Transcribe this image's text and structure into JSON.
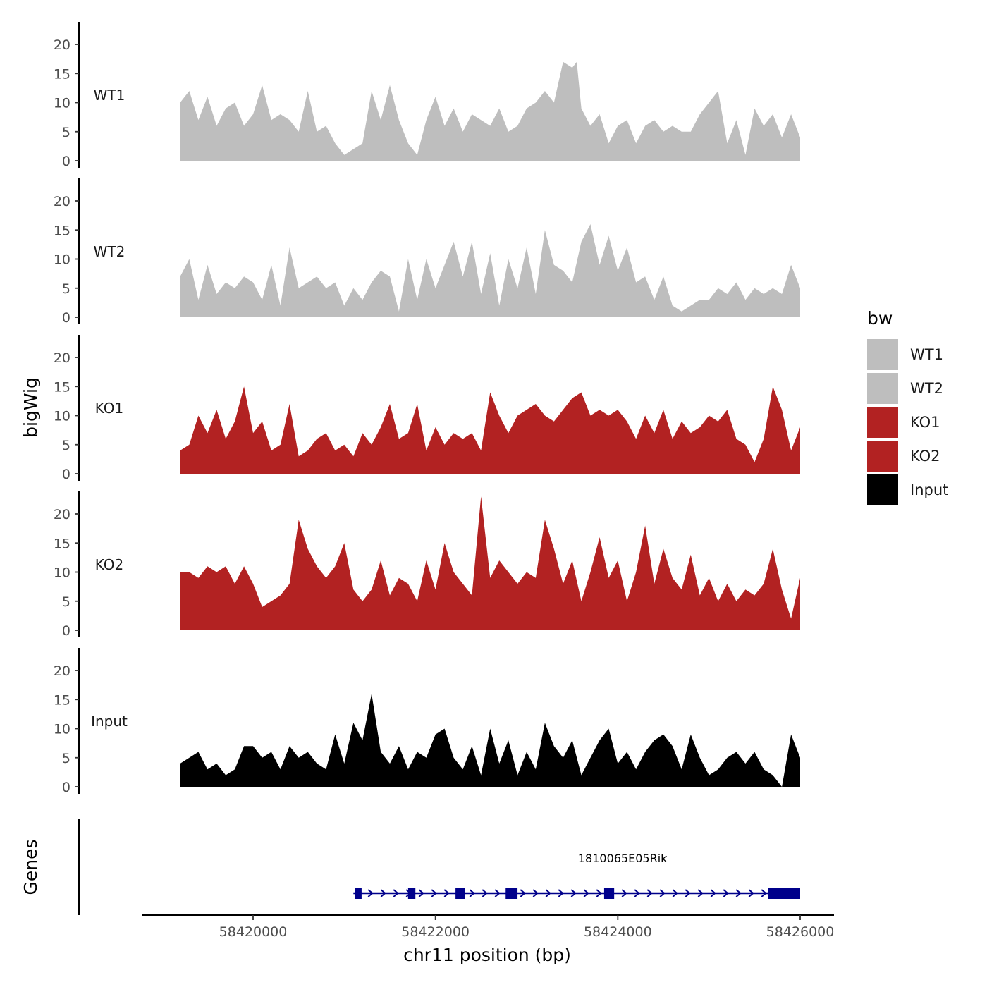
{
  "chart_data": {
    "type": "area",
    "title": "",
    "ylabel": "bigWig",
    "genes_label": "Genes",
    "xlabel": "chr11 position (bp)",
    "ylim": [
      0,
      23
    ],
    "yticks": [
      "0",
      "5",
      "10",
      "15",
      "20"
    ],
    "xlim": [
      58418800,
      58426300
    ],
    "xticks": [
      {
        "value": 58420000,
        "label": "58420000"
      },
      {
        "value": 58422000,
        "label": "58422000"
      },
      {
        "value": 58424000,
        "label": "58424000"
      },
      {
        "value": 58426000,
        "label": "58426000"
      }
    ],
    "legend": {
      "title": "bw",
      "position": "right",
      "entries": [
        {
          "label": "WT1",
          "color": "#BEBEBE"
        },
        {
          "label": "WT2",
          "color": "#BEBEBE"
        },
        {
          "label": "KO1",
          "color": "#B22222"
        },
        {
          "label": "KO2",
          "color": "#B22222"
        },
        {
          "label": "Input",
          "color": "#000000"
        }
      ]
    },
    "tracks": [
      {
        "name": "WT1",
        "color": "#BEBEBE",
        "x": [
          58419200,
          58419300,
          58419400,
          58419500,
          58419600,
          58419700,
          58419800,
          58419900,
          58420000,
          58420100,
          58420200,
          58420300,
          58420400,
          58420500,
          58420600,
          58420700,
          58420800,
          58420900,
          58421000,
          58421100,
          58421200,
          58421300,
          58421400,
          58421500,
          58421600,
          58421700,
          58421800,
          58421900,
          58422000,
          58422100,
          58422200,
          58422300,
          58422400,
          58422500,
          58422600,
          58422700,
          58422800,
          58422900,
          58423000,
          58423100,
          58423200,
          58423300,
          58423400,
          58423500,
          58423550,
          58423600,
          58423700,
          58423800,
          58423900,
          58424000,
          58424100,
          58424200,
          58424300,
          58424400,
          58424500,
          58424600,
          58424700,
          58424800,
          58424900,
          58425000,
          58425100,
          58425200,
          58425300,
          58425400,
          58425500,
          58425600,
          58425700,
          58425800,
          58425900,
          58426000
        ],
        "values": [
          10,
          12,
          7,
          11,
          6,
          9,
          10,
          6,
          8,
          13,
          7,
          8,
          7,
          5,
          12,
          5,
          6,
          3,
          1,
          2,
          3,
          12,
          7,
          13,
          7,
          3,
          1,
          7,
          11,
          6,
          9,
          5,
          8,
          7,
          6,
          9,
          5,
          6,
          9,
          10,
          12,
          10,
          17,
          16,
          17,
          9,
          6,
          8,
          3,
          6,
          7,
          3,
          6,
          7,
          5,
          6,
          5,
          5,
          8,
          10,
          12,
          3,
          7,
          1,
          9,
          6,
          8,
          4,
          8,
          4
        ]
      },
      {
        "name": "WT2",
        "color": "#BEBEBE",
        "x": [
          58419200,
          58419300,
          58419400,
          58419500,
          58419600,
          58419700,
          58419800,
          58419900,
          58420000,
          58420100,
          58420200,
          58420300,
          58420400,
          58420500,
          58420600,
          58420700,
          58420800,
          58420900,
          58421000,
          58421100,
          58421200,
          58421300,
          58421400,
          58421500,
          58421600,
          58421700,
          58421800,
          58421900,
          58422000,
          58422100,
          58422200,
          58422300,
          58422400,
          58422500,
          58422600,
          58422700,
          58422800,
          58422900,
          58423000,
          58423100,
          58423200,
          58423300,
          58423400,
          58423500,
          58423600,
          58423700,
          58423800,
          58423900,
          58424000,
          58424100,
          58424200,
          58424300,
          58424400,
          58424500,
          58424600,
          58424700,
          58424800,
          58424900,
          58425000,
          58425100,
          58425200,
          58425300,
          58425400,
          58425500,
          58425600,
          58425700,
          58425800,
          58425900,
          58426000
        ],
        "values": [
          7,
          10,
          3,
          9,
          4,
          6,
          5,
          7,
          6,
          3,
          9,
          2,
          12,
          5,
          6,
          7,
          5,
          6,
          2,
          5,
          3,
          6,
          8,
          7,
          1,
          10,
          3,
          10,
          5,
          9,
          13,
          7,
          13,
          4,
          11,
          2,
          10,
          5,
          12,
          4,
          15,
          9,
          8,
          6,
          13,
          16,
          9,
          14,
          8,
          12,
          6,
          7,
          3,
          7,
          2,
          1,
          2,
          3,
          3,
          5,
          4,
          6,
          3,
          5,
          4,
          5,
          4,
          9,
          5
        ]
      },
      {
        "name": "KO1",
        "color": "#B22222",
        "x": [
          58419200,
          58419300,
          58419400,
          58419500,
          58419600,
          58419700,
          58419800,
          58419900,
          58420000,
          58420100,
          58420200,
          58420300,
          58420400,
          58420500,
          58420600,
          58420700,
          58420800,
          58420900,
          58421000,
          58421100,
          58421200,
          58421300,
          58421400,
          58421500,
          58421600,
          58421700,
          58421800,
          58421900,
          58422000,
          58422100,
          58422200,
          58422300,
          58422400,
          58422500,
          58422600,
          58422700,
          58422800,
          58422900,
          58423000,
          58423100,
          58423200,
          58423300,
          58423400,
          58423500,
          58423600,
          58423700,
          58423800,
          58423900,
          58424000,
          58424100,
          58424200,
          58424300,
          58424400,
          58424500,
          58424600,
          58424700,
          58424800,
          58424900,
          58425000,
          58425100,
          58425200,
          58425300,
          58425400,
          58425500,
          58425600,
          58425700,
          58425800,
          58425900,
          58426000
        ],
        "values": [
          4,
          5,
          10,
          7,
          11,
          6,
          9,
          15,
          7,
          9,
          4,
          5,
          12,
          3,
          4,
          6,
          7,
          4,
          5,
          3,
          7,
          5,
          8,
          12,
          6,
          7,
          12,
          4,
          8,
          5,
          7,
          6,
          7,
          4,
          14,
          10,
          7,
          10,
          11,
          12,
          10,
          9,
          11,
          13,
          14,
          10,
          11,
          10,
          11,
          9,
          6,
          10,
          7,
          11,
          6,
          9,
          7,
          8,
          10,
          9,
          11,
          6,
          5,
          2,
          6,
          15,
          11,
          4,
          8
        ]
      },
      {
        "name": "KO2",
        "color": "#B22222",
        "x": [
          58419200,
          58419300,
          58419400,
          58419500,
          58419600,
          58419700,
          58419800,
          58419900,
          58420000,
          58420100,
          58420200,
          58420300,
          58420400,
          58420500,
          58420600,
          58420700,
          58420800,
          58420900,
          58421000,
          58421100,
          58421200,
          58421300,
          58421400,
          58421500,
          58421600,
          58421700,
          58421800,
          58421900,
          58422000,
          58422100,
          58422200,
          58422300,
          58422400,
          58422500,
          58422600,
          58422700,
          58422800,
          58422900,
          58423000,
          58423100,
          58423200,
          58423300,
          58423400,
          58423500,
          58423600,
          58423700,
          58423800,
          58423900,
          58424000,
          58424100,
          58424200,
          58424300,
          58424400,
          58424500,
          58424600,
          58424700,
          58424800,
          58424900,
          58425000,
          58425100,
          58425200,
          58425300,
          58425400,
          58425500,
          58425600,
          58425700,
          58425800,
          58425900,
          58426000
        ],
        "values": [
          10,
          10,
          9,
          11,
          10,
          11,
          8,
          11,
          8,
          4,
          5,
          6,
          8,
          19,
          14,
          11,
          9,
          11,
          15,
          7,
          5,
          7,
          12,
          6,
          9,
          8,
          5,
          12,
          7,
          15,
          10,
          8,
          6,
          23,
          9,
          12,
          10,
          8,
          10,
          9,
          19,
          14,
          8,
          12,
          5,
          10,
          16,
          9,
          12,
          5,
          10,
          18,
          8,
          14,
          9,
          7,
          13,
          6,
          9,
          5,
          8,
          5,
          7,
          6,
          8,
          14,
          7,
          2,
          9
        ]
      },
      {
        "name": "Input",
        "color": "#000000",
        "x": [
          58419200,
          58419300,
          58419400,
          58419500,
          58419600,
          58419700,
          58419800,
          58419900,
          58420000,
          58420100,
          58420200,
          58420300,
          58420400,
          58420500,
          58420600,
          58420700,
          58420800,
          58420900,
          58421000,
          58421100,
          58421200,
          58421300,
          58421400,
          58421500,
          58421600,
          58421700,
          58421800,
          58421900,
          58422000,
          58422100,
          58422200,
          58422300,
          58422400,
          58422500,
          58422600,
          58422700,
          58422800,
          58422900,
          58423000,
          58423100,
          58423200,
          58423300,
          58423400,
          58423500,
          58423600,
          58423700,
          58423800,
          58423900,
          58424000,
          58424100,
          58424200,
          58424300,
          58424400,
          58424500,
          58424600,
          58424700,
          58424800,
          58424900,
          58425000,
          58425100,
          58425200,
          58425300,
          58425400,
          58425500,
          58425600,
          58425700,
          58425800,
          58425900,
          58426000
        ],
        "values": [
          4,
          5,
          6,
          3,
          4,
          2,
          3,
          7,
          7,
          5,
          6,
          3,
          7,
          5,
          6,
          4,
          3,
          9,
          4,
          11,
          8,
          16,
          6,
          4,
          7,
          3,
          6,
          5,
          9,
          10,
          5,
          3,
          7,
          2,
          10,
          4,
          8,
          2,
          6,
          3,
          11,
          7,
          5,
          8,
          2,
          5,
          8,
          10,
          4,
          6,
          3,
          6,
          8,
          9,
          7,
          3,
          9,
          5,
          2,
          3,
          5,
          6,
          4,
          6,
          3,
          2,
          0,
          9,
          5
        ]
      }
    ],
    "genes": [
      {
        "name": "1810065E05Rik",
        "color": "#00008B",
        "strand": "+",
        "start": 58421100,
        "end": 58426000,
        "exons": [
          [
            58421120,
            58421190
          ],
          [
            58421700,
            58421780
          ],
          [
            58422220,
            58422320
          ],
          [
            58422770,
            58422900
          ],
          [
            58423850,
            58423960
          ],
          [
            58425650,
            58426000
          ]
        ]
      }
    ]
  }
}
